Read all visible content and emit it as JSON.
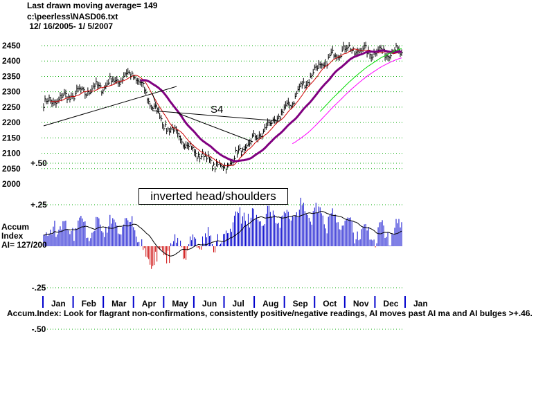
{
  "header": {
    "line1": "Last drawn moving average= 149",
    "line2": "c:\\peerless\\NASD06.txt",
    "line3": " 12/ 16/2005- 1/ 5/2007"
  },
  "annotations": {
    "pattern": "inverted head/shoulders",
    "signal": "S4"
  },
  "accum_panel": {
    "title_line1": "Accum",
    "title_line2": "Index",
    "ai_value": "AI= 127/200"
  },
  "footer": "Accum.Index: Look for flagrant non-confirmations, consistently positive/negative readings, AI moves past AI ma and AI bulges >+.46.",
  "colors": {
    "grid": "#00aa00",
    "price_bars": "#000000",
    "ma_short": "#cc0000",
    "ma_long": "#800080",
    "ma_green": "#00dd00",
    "ma_magenta": "#ff00ff",
    "ai_positive": "#0000cc",
    "ai_negative": "#cc0000",
    "month_ticks": "#0000cc"
  },
  "chart_data": {
    "type": "line",
    "price_panel": {
      "yticks": [
        "2450",
        "2400",
        "2350",
        "2300",
        "2250",
        "2200",
        "2150",
        "2100",
        "2050",
        "2000"
      ],
      "ylim": [
        2000,
        2475
      ],
      "months": [
        "Jan",
        "Feb",
        "Mar",
        "Apr",
        "May",
        "Jun",
        "Jul",
        "Aug",
        "Sep",
        "Oct",
        "Nov",
        "Dec",
        "Jan"
      ],
      "close_monthly_approx": [
        {
          "month": "Jan",
          "value": 2260
        },
        {
          "month": "Feb",
          "value": 2290
        },
        {
          "month": "Mar",
          "value": 2320
        },
        {
          "month": "Apr",
          "value": 2360
        },
        {
          "month": "May",
          "value": 2200
        },
        {
          "month": "Jun",
          "value": 2110
        },
        {
          "month": "Jul",
          "value": 2050
        },
        {
          "month": "Aug",
          "value": 2140
        },
        {
          "month": "Sep",
          "value": 2230
        },
        {
          "month": "Oct",
          "value": 2360
        },
        {
          "month": "Nov",
          "value": 2440
        },
        {
          "month": "Dec",
          "value": 2430
        },
        {
          "month": "Jan",
          "value": 2430
        }
      ]
    },
    "accum_panel": {
      "yticks": [
        "+.50",
        "+.25",
        "-.25",
        "-.50"
      ],
      "ylim": [
        -0.5,
        0.5
      ]
    }
  }
}
